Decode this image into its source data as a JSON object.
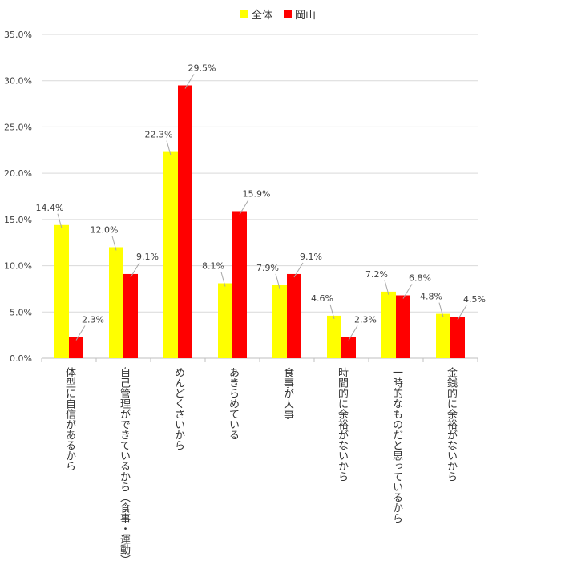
{
  "chart_data": {
    "type": "bar",
    "title": "",
    "xlabel": "",
    "ylabel": "",
    "ylim": [
      0,
      35
    ],
    "yticks": [
      "0.0%",
      "5.0%",
      "10.0%",
      "15.0%",
      "20.0%",
      "25.0%",
      "30.0%",
      "35.0%"
    ],
    "grid": true,
    "legend_position": "top",
    "categories": [
      "体型に自信があるから",
      "自己管理ができているから（食事・運動）",
      "めんどくさいから",
      "あきらめている",
      "食事が大事",
      "時間的に余裕がないから",
      "一時的なものだと思っているから",
      "金銭的に余裕がないから"
    ],
    "series": [
      {
        "name": "全体",
        "color": "#FFFF00",
        "values": [
          14.4,
          12.0,
          22.3,
          8.1,
          7.9,
          4.6,
          7.2,
          4.8
        ],
        "labels": [
          "14.4%",
          "12.0%",
          "22.3%",
          "8.1%",
          "7.9%",
          "4.6%",
          "7.2%",
          "4.8%"
        ]
      },
      {
        "name": "岡山",
        "color": "#FF0000",
        "values": [
          2.3,
          9.1,
          29.5,
          15.9,
          9.1,
          2.3,
          6.8,
          4.5
        ],
        "labels": [
          "2.3%",
          "9.1%",
          "29.5%",
          "15.9%",
          "9.1%",
          "2.3%",
          "6.8%",
          "4.5%"
        ]
      }
    ]
  }
}
